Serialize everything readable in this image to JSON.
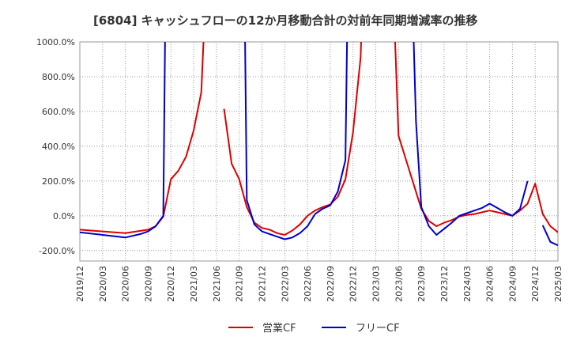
{
  "chart_data": {
    "type": "line",
    "title": "[6804]  キャッシュフローの12か月移動合計の対前年同期増減率の推移",
    "xlabel": "",
    "ylabel": "",
    "ylim": [
      -260,
      1000
    ],
    "grid": true,
    "legend_position": "bottom-center",
    "yticks": [
      -200,
      0,
      200,
      400,
      600,
      800,
      1000
    ],
    "ytick_labels": [
      "-200.0%",
      "0.0%",
      "200.0%",
      "400.0%",
      "600.0%",
      "800.0%",
      "1000.0%"
    ],
    "xtick_labels": [
      "2019/12",
      "2020/03",
      "2020/06",
      "2020/09",
      "2020/12",
      "2021/03",
      "2021/06",
      "2021/09",
      "2021/12",
      "2022/03",
      "2022/06",
      "2022/09",
      "2022/12",
      "2023/03",
      "2023/06",
      "2023/09",
      "2023/12",
      "2024/03",
      "2024/06",
      "2024/09",
      "2024/12",
      "2025/03"
    ],
    "series": [
      {
        "name": "営業CF",
        "color": "#dd0000",
        "points": [
          {
            "m": 0,
            "v": -80
          },
          {
            "m": 3,
            "v": -90
          },
          {
            "m": 6,
            "v": -100
          },
          {
            "m": 9,
            "v": -80
          },
          {
            "m": 10,
            "v": -60
          },
          {
            "m": 11,
            "v": -5
          },
          {
            "m": 12,
            "v": 210
          },
          {
            "m": 13,
            "v": 260
          },
          {
            "m": 14,
            "v": 340
          },
          {
            "m": 15,
            "v": 490
          },
          {
            "m": 16,
            "v": 710
          },
          {
            "m": 16.6,
            "v": 1300
          },
          null,
          {
            "m": 19.2,
            "v": 1300
          },
          {
            "m": 19.5,
            "v": 1100
          },
          null,
          {
            "m": 19,
            "v": 615
          },
          {
            "m": 20,
            "v": 300
          },
          {
            "m": 21,
            "v": 210
          },
          {
            "m": 22,
            "v": 50
          },
          {
            "m": 23,
            "v": -40
          },
          {
            "m": 24,
            "v": -70
          },
          {
            "m": 25,
            "v": -80
          },
          {
            "m": 26,
            "v": -100
          },
          {
            "m": 27,
            "v": -110
          },
          {
            "m": 28,
            "v": -85
          },
          {
            "m": 29,
            "v": -50
          },
          {
            "m": 30,
            "v": 0
          },
          {
            "m": 31,
            "v": 30
          },
          {
            "m": 32,
            "v": 50
          },
          {
            "m": 33,
            "v": 65
          },
          {
            "m": 34,
            "v": 110
          },
          {
            "m": 35,
            "v": 210
          },
          {
            "m": 36,
            "v": 480
          },
          {
            "m": 37,
            "v": 910
          },
          {
            "m": 37.3,
            "v": 1300
          },
          null,
          {
            "m": 41.3,
            "v": 1300
          },
          {
            "m": 42,
            "v": 460
          },
          {
            "m": 43,
            "v": 320
          },
          {
            "m": 44,
            "v": 180
          },
          {
            "m": 45,
            "v": 40
          },
          {
            "m": 46,
            "v": -30
          },
          {
            "m": 47,
            "v": -60
          },
          {
            "m": 48,
            "v": -40
          },
          {
            "m": 49,
            "v": -25
          },
          {
            "m": 50,
            "v": -5
          },
          {
            "m": 51,
            "v": 5
          },
          {
            "m": 52,
            "v": 10
          },
          {
            "m": 53,
            "v": 20
          },
          {
            "m": 54,
            "v": 30
          },
          {
            "m": 55,
            "v": 20
          },
          {
            "m": 56,
            "v": 10
          },
          {
            "m": 57,
            "v": 0
          },
          {
            "m": 58,
            "v": 30
          },
          {
            "m": 59,
            "v": 70
          },
          {
            "m": 60,
            "v": 185
          },
          {
            "m": 61,
            "v": 10
          },
          {
            "m": 62,
            "v": -60
          },
          {
            "m": 63,
            "v": -95
          }
        ]
      },
      {
        "name": "フリーCF",
        "color": "#0000cc",
        "points": [
          {
            "m": 0,
            "v": -95
          },
          {
            "m": 3,
            "v": -110
          },
          {
            "m": 6,
            "v": -125
          },
          {
            "m": 8,
            "v": -105
          },
          {
            "m": 9,
            "v": -90
          },
          {
            "m": 10,
            "v": -60
          },
          {
            "m": 11,
            "v": 0
          },
          {
            "m": 11.3,
            "v": 1300
          },
          null,
          {
            "m": 21.7,
            "v": 1300
          },
          {
            "m": 22,
            "v": 90
          },
          {
            "m": 23,
            "v": -50
          },
          {
            "m": 24,
            "v": -90
          },
          {
            "m": 25,
            "v": -105
          },
          {
            "m": 26,
            "v": -120
          },
          {
            "m": 27,
            "v": -135
          },
          {
            "m": 28,
            "v": -125
          },
          {
            "m": 29,
            "v": -100
          },
          {
            "m": 30,
            "v": -60
          },
          {
            "m": 31,
            "v": 10
          },
          {
            "m": 32,
            "v": 40
          },
          {
            "m": 33,
            "v": 60
          },
          {
            "m": 34,
            "v": 140
          },
          {
            "m": 35,
            "v": 320
          },
          {
            "m": 35.3,
            "v": 1300
          },
          null,
          {
            "m": 43.8,
            "v": 1300
          },
          {
            "m": 44.3,
            "v": 540
          },
          {
            "m": 45,
            "v": 50
          },
          {
            "m": 46,
            "v": -60
          },
          {
            "m": 47,
            "v": -110
          },
          {
            "m": 48,
            "v": -75
          },
          {
            "m": 49,
            "v": -40
          },
          {
            "m": 50,
            "v": 0
          },
          {
            "m": 51,
            "v": 15
          },
          {
            "m": 52,
            "v": 30
          },
          {
            "m": 53,
            "v": 45
          },
          {
            "m": 54,
            "v": 70
          },
          {
            "m": 55,
            "v": 45
          },
          {
            "m": 56,
            "v": 20
          },
          {
            "m": 57,
            "v": 0
          },
          {
            "m": 58,
            "v": 40
          },
          {
            "m": 59,
            "v": 200
          },
          null,
          {
            "m": 61,
            "v": -55
          },
          {
            "m": 62,
            "v": -150
          },
          {
            "m": 63,
            "v": -170
          }
        ]
      }
    ]
  }
}
